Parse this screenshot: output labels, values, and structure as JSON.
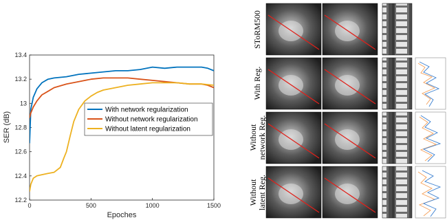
{
  "chart_data": {
    "type": "line",
    "xlabel": "Epoches",
    "ylabel": "SER (dB)",
    "xlim": [
      0,
      1500
    ],
    "ylim": [
      12.2,
      13.4
    ],
    "xticks": [
      0,
      500,
      1000,
      1500
    ],
    "yticks": [
      12.2,
      12.4,
      12.6,
      12.8,
      13.0,
      13.2,
      13.4
    ],
    "ytick_labels": [
      "12.2",
      "12.4",
      "12.6",
      "12.8",
      "13",
      "13.2",
      "13.4"
    ],
    "legend_position": "right",
    "series": [
      {
        "name": "With network regularization",
        "color": "#0072BD",
        "x": [
          0,
          10,
          30,
          60,
          100,
          150,
          200,
          300,
          400,
          500,
          600,
          700,
          800,
          900,
          1000,
          1100,
          1200,
          1300,
          1400,
          1450,
          1500
        ],
        "y": [
          12.67,
          12.95,
          13.05,
          13.12,
          13.17,
          13.2,
          13.21,
          13.22,
          13.24,
          13.25,
          13.26,
          13.27,
          13.27,
          13.28,
          13.3,
          13.29,
          13.3,
          13.3,
          13.3,
          13.29,
          13.27
        ]
      },
      {
        "name": "Without network regularization",
        "color": "#D95319",
        "x": [
          0,
          10,
          30,
          60,
          100,
          150,
          200,
          300,
          400,
          500,
          600,
          700,
          800,
          900,
          1000,
          1100,
          1200,
          1300,
          1400,
          1450,
          1500
        ],
        "y": [
          12.88,
          12.92,
          12.97,
          13.02,
          13.07,
          13.1,
          13.13,
          13.16,
          13.18,
          13.2,
          13.21,
          13.21,
          13.21,
          13.2,
          13.19,
          13.18,
          13.17,
          13.16,
          13.16,
          13.15,
          13.13
        ]
      },
      {
        "name": "Without latent regularization",
        "color": "#EDB120",
        "x": [
          0,
          10,
          30,
          60,
          100,
          150,
          200,
          250,
          280,
          300,
          330,
          360,
          400,
          450,
          500,
          550,
          600,
          700,
          800,
          900,
          1000,
          1100,
          1200,
          1300,
          1400,
          1500
        ],
        "y": [
          12.27,
          12.33,
          12.38,
          12.4,
          12.41,
          12.42,
          12.43,
          12.47,
          12.55,
          12.6,
          12.73,
          12.85,
          12.95,
          13.02,
          13.06,
          13.09,
          13.11,
          13.13,
          13.15,
          13.16,
          13.17,
          13.17,
          13.17,
          13.16,
          13.16,
          13.15
        ]
      }
    ]
  },
  "figure_panels": {
    "rows": [
      {
        "label_lines": [
          "SToRM500"
        ]
      },
      {
        "label_lines": [
          "With Reg."
        ]
      },
      {
        "label_lines": [
          "Without",
          "network Reg."
        ]
      },
      {
        "label_lines": [
          "Without",
          "latent Reg."
        ]
      }
    ]
  }
}
